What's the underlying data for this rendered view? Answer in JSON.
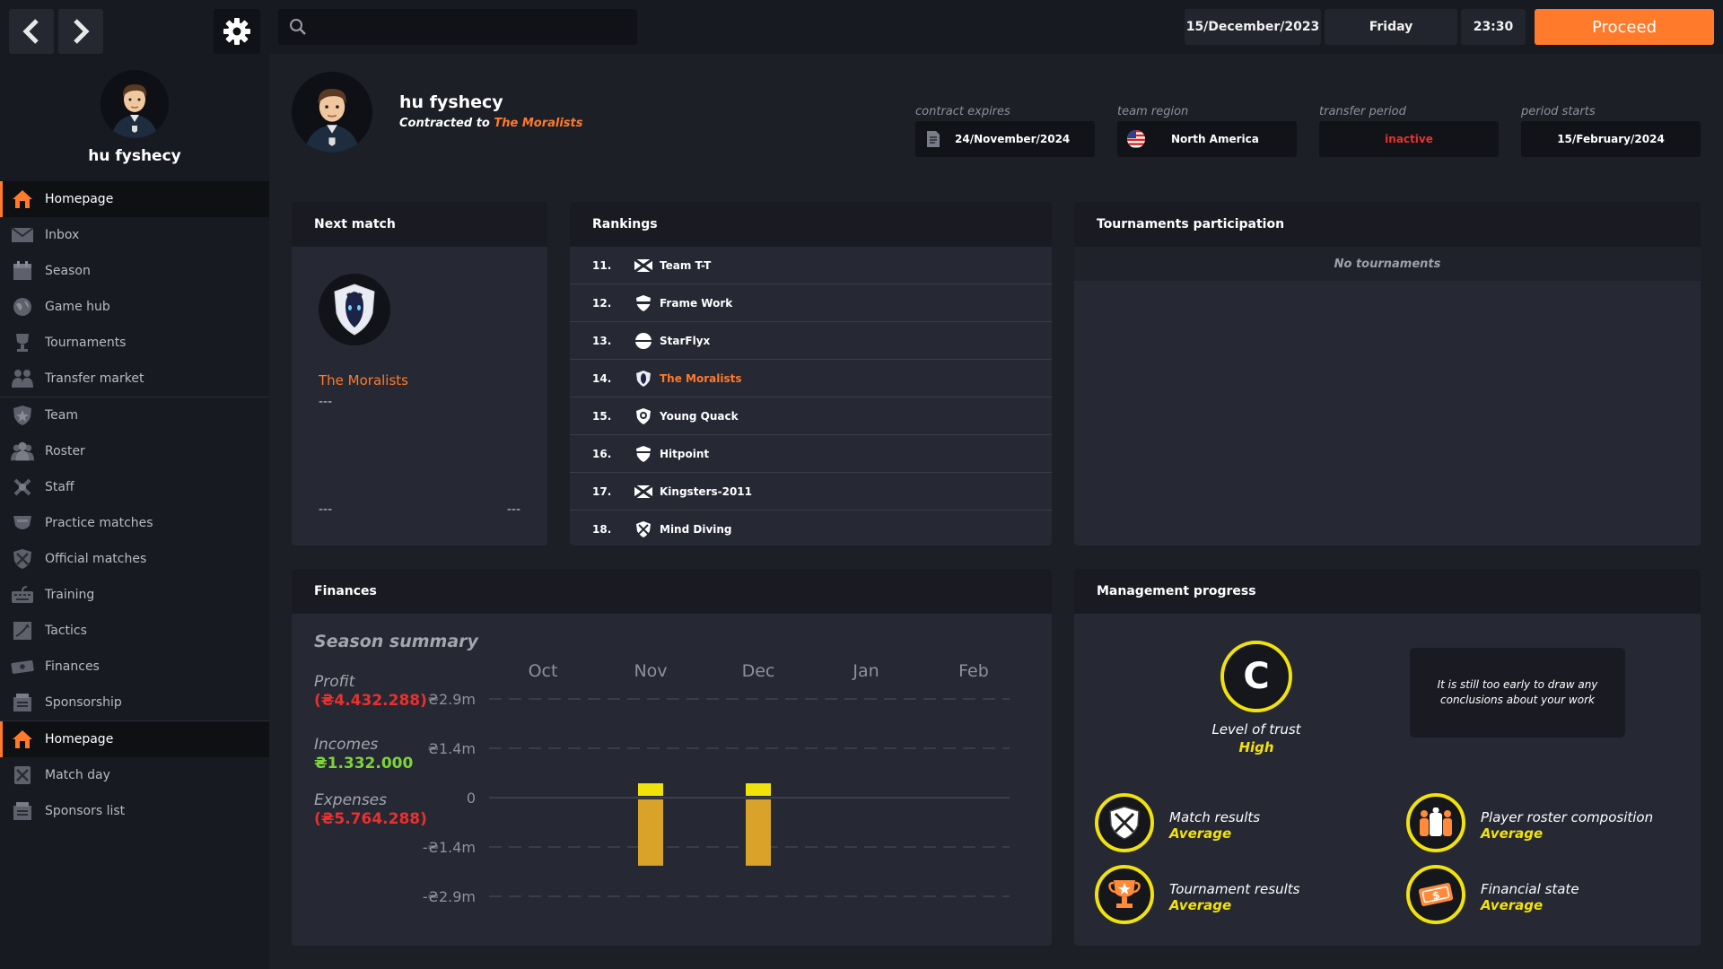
{
  "topbar": {
    "search_placeholder": "",
    "date": "15/December/2023",
    "day": "Friday",
    "time": "23:30",
    "proceed_label": "Proceed"
  },
  "sidebar": {
    "manager_name": "hu fyshecy",
    "items": [
      {
        "label": "Homepage",
        "icon": "home-icon"
      },
      {
        "label": "Inbox",
        "icon": "mail-icon"
      },
      {
        "label": "Season",
        "icon": "calendar-icon"
      },
      {
        "label": "Game hub",
        "icon": "globe-icon"
      },
      {
        "label": "Tournaments",
        "icon": "trophy-icon"
      },
      {
        "label": "Transfer market",
        "icon": "handshake-icon"
      },
      {
        "label": "Team",
        "icon": "star-shield-icon"
      },
      {
        "label": "Roster",
        "icon": "people-icon"
      },
      {
        "label": "Staff",
        "icon": "tools-icon"
      },
      {
        "label": "Practice matches",
        "icon": "practice-icon"
      },
      {
        "label": "Official matches",
        "icon": "crossed-swords-icon"
      },
      {
        "label": "Training",
        "icon": "keyboard-icon"
      },
      {
        "label": "Tactics",
        "icon": "tactics-icon"
      },
      {
        "label": "Finances",
        "icon": "money-icon"
      },
      {
        "label": "Sponsorship",
        "icon": "sponsorship-icon"
      },
      {
        "label": "Homepage",
        "icon": "home-icon"
      },
      {
        "label": "Match day",
        "icon": "crossed-swords-icon"
      },
      {
        "label": "Sponsors list",
        "icon": "list-icon"
      }
    ]
  },
  "profile": {
    "name": "hu fyshecy",
    "contracted_prefix": "Contracted to",
    "contracted_team": "The Moralists",
    "contract_expires_label": "contract expires",
    "contract_expires": "24/November/2024",
    "team_region_label": "team region",
    "team_region": "North America",
    "transfer_period_label": "transfer period",
    "transfer_period": "inactive",
    "period_starts_label": "period starts",
    "period_starts": "15/February/2024"
  },
  "next_match": {
    "title": "Next match",
    "team": "The Moralists",
    "dash1": "---",
    "dash2": "---",
    "dash3": "---"
  },
  "rankings": {
    "title": "Rankings",
    "rows": [
      {
        "pos": "11.",
        "team": "Team T-T",
        "icon": "cross-flag-icon"
      },
      {
        "pos": "12.",
        "team": "Frame Work",
        "icon": "shield-icon"
      },
      {
        "pos": "13.",
        "team": "StarFlyx",
        "icon": "circle-logo-icon"
      },
      {
        "pos": "14.",
        "team": "The Moralists",
        "icon": "horse-shield-icon"
      },
      {
        "pos": "15.",
        "team": "Young Quack",
        "icon": "duck-shield-icon"
      },
      {
        "pos": "16.",
        "team": "Hitpoint",
        "icon": "shield-icon"
      },
      {
        "pos": "17.",
        "team": "Kingsters-2011",
        "icon": "cross-flag-icon"
      },
      {
        "pos": "18.",
        "team": "Mind Diving",
        "icon": "x-shield-icon"
      }
    ]
  },
  "tournaments": {
    "title": "Tournaments participation",
    "empty_text": "No tournaments"
  },
  "finances": {
    "title": "Finances",
    "season_summary": "Season summary",
    "profit_label": "Profit",
    "profit_value": "(₴4.432.288)",
    "incomes_label": "Incomes",
    "incomes_value": "₴1.332.000",
    "expenses_label": "Expenses",
    "expenses_value": "(₴5.764.288)"
  },
  "chart_data": {
    "type": "bar",
    "categories": [
      "Oct",
      "Nov",
      "Dec",
      "Jan",
      "Feb"
    ],
    "y_tick_labels": [
      "₴2.9m",
      "₴1.4m",
      "0",
      "-₴1.4m",
      "-₴2.9m"
    ],
    "ylim": [
      -2.9,
      2.9
    ],
    "y_unit": "m",
    "grid": true,
    "series": [
      {
        "color": "#f2e20c",
        "values": [
          0,
          0.42,
          0.42,
          0,
          0
        ]
      },
      {
        "color": "#d9a32a",
        "values": [
          0,
          -2.0,
          -2.0,
          0,
          0
        ]
      }
    ]
  },
  "management": {
    "title": "Management progress",
    "trust_grade": "C",
    "trust_label": "Level of trust",
    "trust_level": "High",
    "early_text": "It is still too early to draw any conclusions about your work",
    "items": [
      {
        "title": "Match results",
        "value": "Average",
        "icon": "crossed-swords-icon"
      },
      {
        "title": "Player roster composition",
        "value": "Average",
        "icon": "people-icon"
      },
      {
        "title": "Tournament results",
        "value": "Average",
        "icon": "trophy-icon"
      },
      {
        "title": "Financial state",
        "value": "Average",
        "icon": "money-icon"
      }
    ]
  },
  "colors": {
    "accent": "#ff7a2a",
    "yellow": "#f2e20c",
    "negative": "#e8312f",
    "positive": "#7cd43a"
  }
}
